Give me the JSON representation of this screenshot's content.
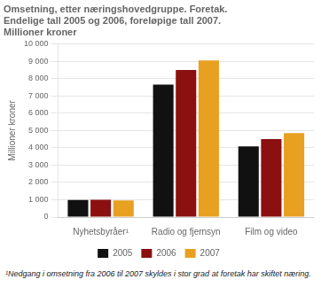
{
  "chart_data": {
    "type": "bar",
    "title": [
      "Omsetning, etter næringshovedgruppe. Foretak.",
      "Endelige tall 2005 og 2006, foreløpige tall 2007.",
      "Millioner kroner"
    ],
    "y_label": "Millioner kroner",
    "categories": [
      "Nyhetsbyråer¹",
      "Radio og fjernsyn",
      "Film og video"
    ],
    "series": [
      {
        "name": "2005",
        "color": "#111111",
        "values": [
          980,
          7650,
          4080
        ]
      },
      {
        "name": "2006",
        "color": "#8b1010",
        "values": [
          1000,
          8500,
          4500
        ]
      },
      {
        "name": "2007",
        "color": "#e8a020",
        "values": [
          960,
          9050,
          4850
        ]
      }
    ],
    "ylim": [
      0,
      10000
    ],
    "yticks": [
      0,
      {
        "value": 1000,
        "label": "1 000"
      },
      {
        "value": 2000,
        "label": "2 000"
      },
      {
        "value": 3000,
        "label": "3 000"
      },
      {
        "value": 4000,
        "label": "4 000"
      },
      {
        "value": 5000,
        "label": "5 000"
      },
      {
        "value": 6000,
        "label": "6 000"
      },
      {
        "value": 7000,
        "label": "7 000"
      },
      {
        "value": 8000,
        "label": "8 000"
      },
      {
        "value": 9000,
        "label": "9 000"
      },
      {
        "value": 10000,
        "label": "10 000"
      }
    ],
    "grid": true,
    "legend": "bottom",
    "annotations": [
      "¹Nedgang i omsetning fra 2006 til 2007 skyldes i stor grad at foretak har skiftet næring."
    ]
  }
}
